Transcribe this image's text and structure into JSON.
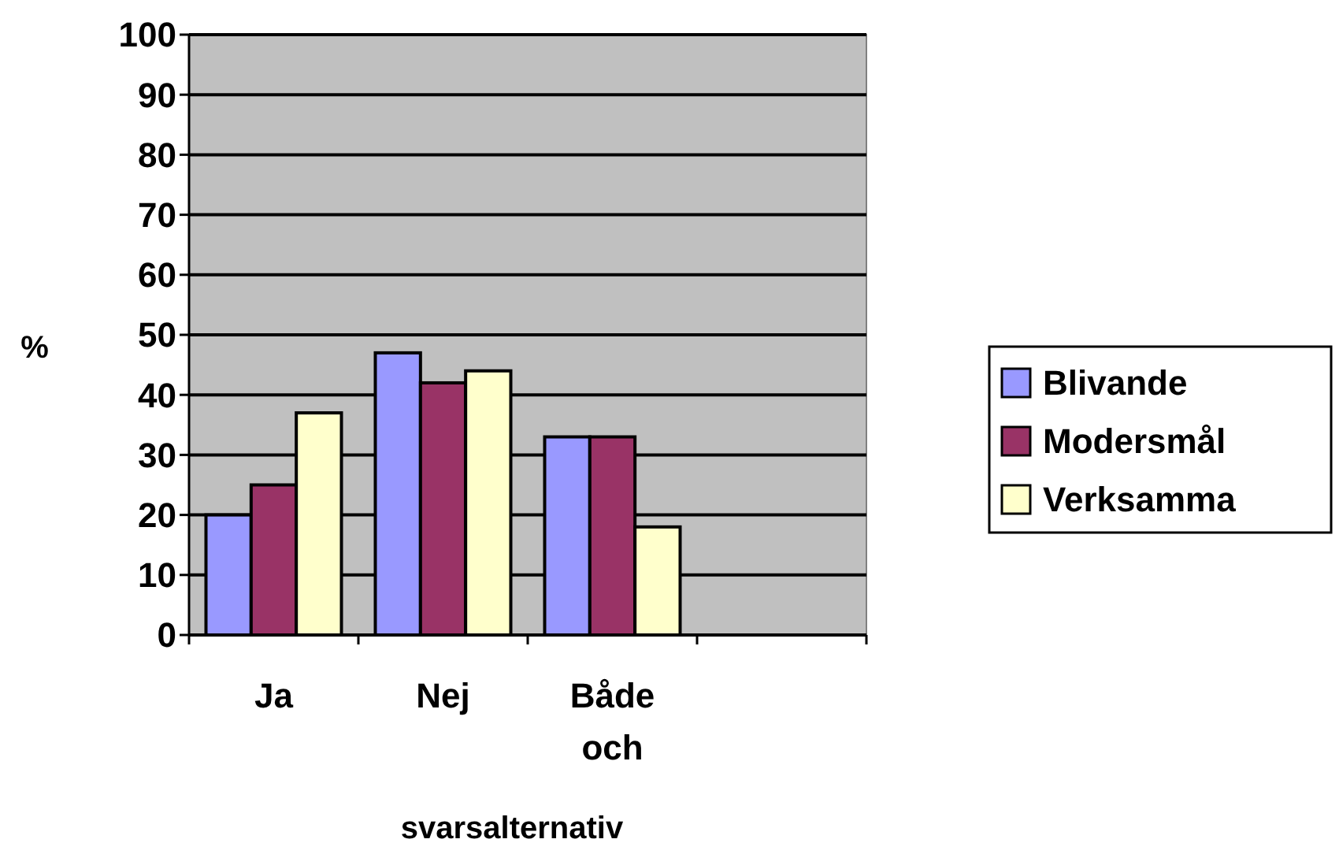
{
  "chart_data": {
    "type": "bar",
    "xlabel": "svarsalternativ",
    "ylabel": "%",
    "categories": [
      "Ja",
      "Nej",
      "Både och",
      null
    ],
    "series": [
      {
        "name": "Blivande",
        "color": "#9999ff",
        "values": [
          20,
          47,
          33,
          null
        ]
      },
      {
        "name": "Modersmål",
        "color": "#993366",
        "values": [
          25,
          42,
          33,
          null
        ]
      },
      {
        "name": "Verksamma",
        "color": "#ffffcc",
        "values": [
          37,
          44,
          18,
          null
        ]
      }
    ],
    "ylim": [
      0,
      100
    ],
    "yticks": [
      0,
      10,
      20,
      30,
      40,
      50,
      60,
      70,
      80,
      90,
      100
    ],
    "grid": "y",
    "legend": "right"
  }
}
